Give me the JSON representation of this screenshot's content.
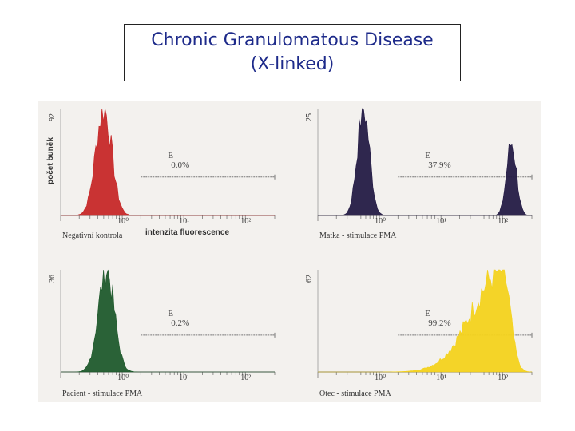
{
  "title": {
    "line1": "Chronic Granulomatous Disease",
    "line2": "(X-linked)"
  },
  "shared_xlabel": "intenzita fluorescence",
  "shared_ylabel": "počet buněk",
  "colors": {
    "background": "#f3f1ee",
    "panel1": "#c62828",
    "panel2": "#241b45",
    "panel3": "#1f5a2c",
    "panel4": "#f3d21c",
    "title": "#1d2a8a"
  },
  "chart_data": [
    {
      "type": "area",
      "caption": "Negativní kontrola",
      "xscale": "log",
      "xlim": [
        0.1,
        300
      ],
      "x_ticks": [
        "10⁰",
        "10¹",
        "10²"
      ],
      "ymax_label": "92",
      "ylim": [
        0,
        92
      ],
      "gate": {
        "label": "E",
        "percent": "0.0%",
        "from": 2,
        "to": 300
      },
      "color": "#c62828",
      "peaks": [
        {
          "center": 0.5,
          "width_decades": 0.13,
          "height": 92
        }
      ]
    },
    {
      "type": "area",
      "caption": "Matka - stimulace PMA",
      "xscale": "log",
      "xlim": [
        0.1,
        300
      ],
      "x_ticks": [
        "10⁰",
        "10¹",
        "10²"
      ],
      "ymax_label": "25",
      "ylim": [
        0,
        25
      ],
      "gate": {
        "label": "E",
        "percent": "37.9%",
        "from": 2,
        "to": 300
      },
      "color": "#241b45",
      "peaks": [
        {
          "center": 0.55,
          "width_decades": 0.1,
          "height": 25
        },
        {
          "center": 140,
          "width_decades": 0.08,
          "height": 17
        }
      ]
    },
    {
      "type": "area",
      "caption": "Pacient - stimulace PMA",
      "xscale": "log",
      "xlim": [
        0.1,
        300
      ],
      "x_ticks": [
        "10⁰",
        "10¹",
        "10²"
      ],
      "ymax_label": "36",
      "ylim": [
        0,
        36
      ],
      "gate": {
        "label": "E",
        "percent": "0.2%",
        "from": 2,
        "to": 300
      },
      "color": "#1f5a2c",
      "peaks": [
        {
          "center": 0.55,
          "width_decades": 0.13,
          "height": 36
        }
      ]
    },
    {
      "type": "area",
      "caption": "Otec - stimulace PMA",
      "xscale": "log",
      "xlim": [
        0.1,
        300
      ],
      "x_ticks": [
        "10⁰",
        "10¹",
        "10²"
      ],
      "ymax_label": "62",
      "ylim": [
        0,
        62
      ],
      "gate": {
        "label": "E",
        "percent": "99.2%",
        "from": 2,
        "to": 300
      },
      "color": "#f3d21c",
      "peaks": [
        {
          "center": 100,
          "width_decades": 0.35,
          "height": 62,
          "skew": "left"
        }
      ]
    }
  ]
}
